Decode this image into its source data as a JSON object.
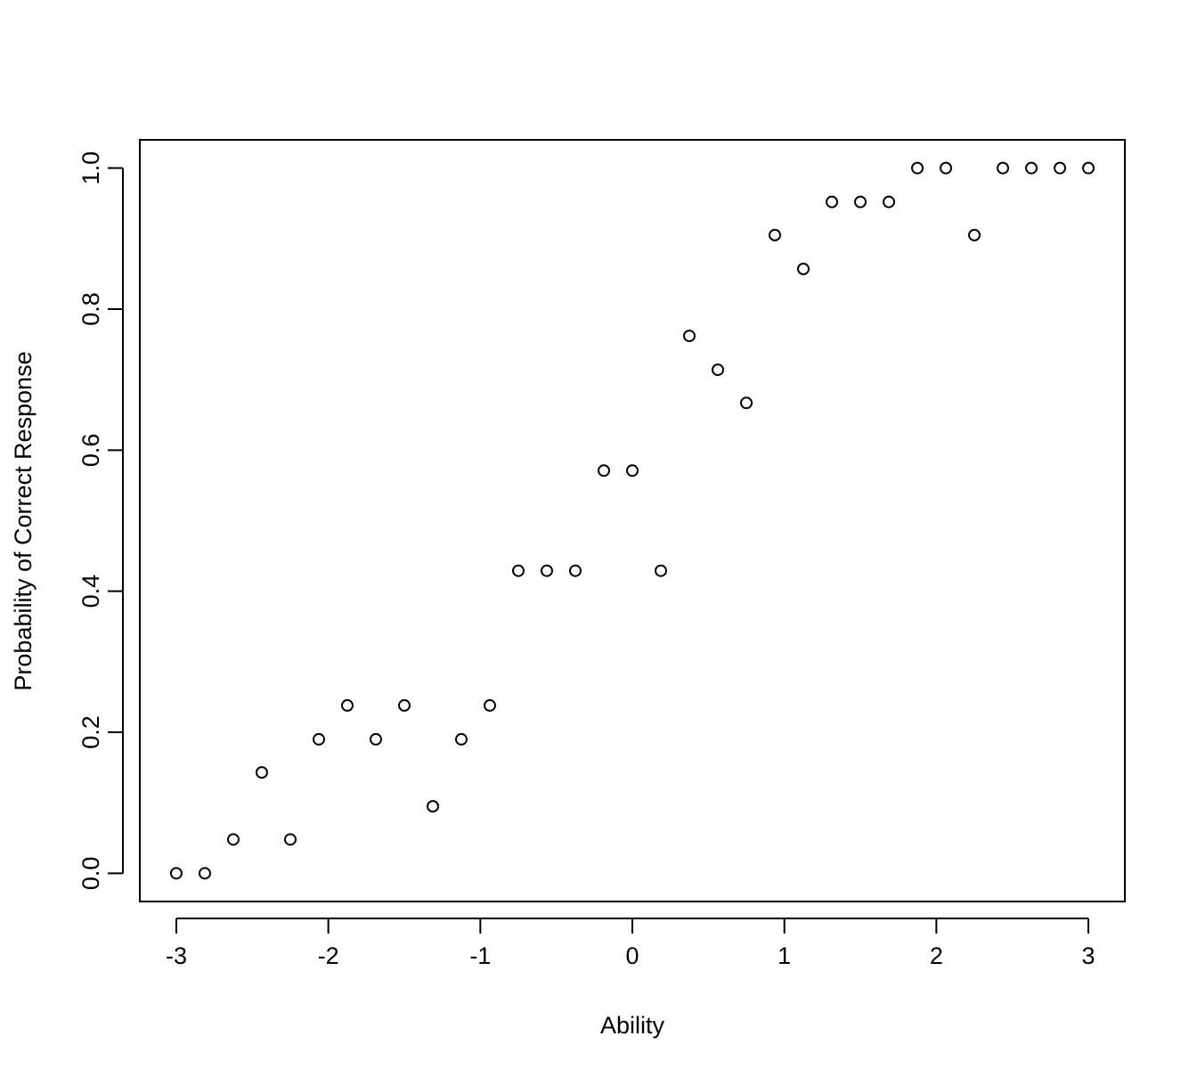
{
  "chart_data": {
    "type": "scatter",
    "x_label": "Ability",
    "y_label": "Probability of Correct Response",
    "x": [
      -3,
      -2.8125,
      -2.625,
      -2.4375,
      -2.25,
      -2.0625,
      -1.875,
      -1.6875,
      -1.5,
      -1.3125,
      -1.125,
      -0.9375,
      -0.75,
      -0.5625,
      -0.375,
      -0.1875,
      0,
      0.1875,
      0.375,
      0.5625,
      0.75,
      0.9375,
      1.125,
      1.3125,
      1.5,
      1.6875,
      1.875,
      2.0625,
      2.25,
      2.4375,
      2.625,
      2.8125,
      3
    ],
    "values": [
      0,
      0,
      0.048,
      0.143,
      0.048,
      0.19,
      0.238,
      0.19,
      0.238,
      0.095,
      0.19,
      0.238,
      0.429,
      0.429,
      0.429,
      0.571,
      0.571,
      0.429,
      0.762,
      0.714,
      0.667,
      0.905,
      0.857,
      0.952,
      0.952,
      0.952,
      1,
      1,
      0.905,
      1,
      1,
      1,
      1
    ],
    "color": "#000000",
    "xlim": [
      -3.24,
      3.24
    ],
    "ylim": [
      -0.04,
      1.04
    ],
    "xticks": [
      -3,
      -2,
      -1,
      0,
      1,
      2,
      3
    ],
    "yticks": [
      {
        "value": 0,
        "label": "0.0"
      },
      {
        "value": 0.2,
        "label": "0.2"
      },
      {
        "value": 0.4,
        "label": "0.4"
      },
      {
        "value": 0.6,
        "label": "0.6"
      },
      {
        "value": 0.8,
        "label": "0.8"
      },
      {
        "value": 1,
        "label": "1.0"
      }
    ]
  }
}
